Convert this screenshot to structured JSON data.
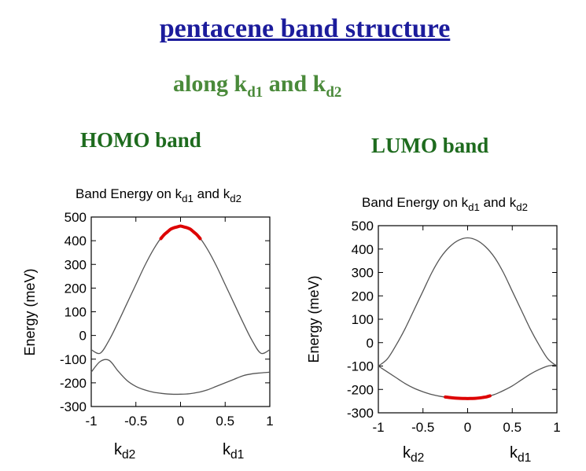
{
  "header": {
    "title": "pentacene band structure",
    "subtitle_prefix": "along k",
    "subtitle_sub1": "d1",
    "subtitle_mid": " and k",
    "subtitle_sub2": "d2"
  },
  "colors": {
    "title": "#1c1c9c",
    "subtitle": "#4a8a3a",
    "band_label": "#1e6b1e",
    "curve": "#555555",
    "highlight": "#dd0000"
  },
  "chart_data": [
    {
      "type": "line",
      "label": "HOMO band",
      "title_prefix": "Band Energy on k",
      "title_sub1": "d1",
      "title_mid": " and k",
      "title_sub2": "d2",
      "ylabel": "Energy (meV)",
      "x_left_label": "k",
      "x_left_sub": "d2",
      "x_right_label": "k",
      "x_right_sub": "d1",
      "xlim": [
        -1,
        1
      ],
      "ylim": [
        -300,
        500
      ],
      "xticks": [
        -1,
        -0.5,
        0,
        0.5,
        1
      ],
      "xtick_labels": [
        "-1",
        "-0.5",
        "0",
        "0.5",
        "1"
      ],
      "yticks": [
        -300,
        -200,
        -100,
        0,
        100,
        200,
        300,
        400,
        500
      ],
      "ytick_labels": [
        "-300",
        "-200",
        "-100",
        "0",
        "100",
        "200",
        "300",
        "400",
        "500"
      ],
      "series": [
        {
          "x": [
            -1,
            -0.9,
            -0.8,
            -0.7,
            -0.6,
            -0.5,
            -0.4,
            -0.3,
            -0.2,
            -0.1,
            0,
            0.1,
            0.2,
            0.3,
            0.4,
            0.5,
            0.6,
            0.7,
            0.8,
            0.9,
            1
          ],
          "values": [
            -60,
            -75,
            -20,
            55,
            135,
            215,
            295,
            365,
            420,
            452,
            462,
            452,
            420,
            365,
            295,
            215,
            135,
            55,
            -20,
            -75,
            -60
          ]
        },
        {
          "x": [
            -1,
            -0.9,
            -0.8,
            -0.7,
            -0.6,
            -0.5,
            -0.4,
            -0.3,
            -0.2,
            -0.1,
            0,
            0.1,
            0.2,
            0.3,
            0.4,
            0.5,
            0.6,
            0.7,
            0.8,
            0.9,
            1
          ],
          "values": [
            -155,
            -110,
            -105,
            -150,
            -190,
            -215,
            -230,
            -240,
            -245,
            -248,
            -248,
            -246,
            -240,
            -230,
            -215,
            -200,
            -185,
            -170,
            -162,
            -158,
            -155
          ]
        }
      ],
      "highlight": {
        "series_index": 0,
        "x_range": [
          -0.22,
          0.22
        ]
      }
    },
    {
      "type": "line",
      "label": "LUMO band",
      "title_prefix": "Band Energy on k",
      "title_sub1": "d1",
      "title_mid": " and k",
      "title_sub2": "d2",
      "ylabel": "Energy (meV)",
      "x_left_label": "k",
      "x_left_sub": "d2",
      "x_right_label": "k",
      "x_right_sub": "d1",
      "xlim": [
        -1,
        1
      ],
      "ylim": [
        -300,
        500
      ],
      "xticks": [
        -1,
        -0.5,
        0,
        0.5,
        1
      ],
      "xtick_labels": [
        "-1",
        "-0.5",
        "0",
        "0.5",
        "1"
      ],
      "yticks": [
        -300,
        -200,
        -100,
        0,
        100,
        200,
        300,
        400,
        500
      ],
      "ytick_labels": [
        "-300",
        "-200",
        "-100",
        "0",
        "100",
        "200",
        "300",
        "400",
        "500"
      ],
      "series": [
        {
          "x": [
            -1,
            -0.9,
            -0.8,
            -0.7,
            -0.6,
            -0.5,
            -0.4,
            -0.3,
            -0.2,
            -0.1,
            0,
            0.1,
            0.2,
            0.3,
            0.4,
            0.5,
            0.6,
            0.7,
            0.8,
            0.9,
            1
          ],
          "values": [
            -100,
            -70,
            -10,
            60,
            140,
            220,
            300,
            365,
            410,
            438,
            448,
            438,
            410,
            365,
            300,
            220,
            140,
            60,
            -10,
            -70,
            -100
          ]
        },
        {
          "x": [
            -1,
            -0.9,
            -0.8,
            -0.7,
            -0.6,
            -0.5,
            -0.4,
            -0.3,
            -0.2,
            -0.1,
            0,
            0.1,
            0.2,
            0.3,
            0.4,
            0.5,
            0.6,
            0.7,
            0.8,
            0.9,
            1
          ],
          "values": [
            -100,
            -125,
            -150,
            -175,
            -195,
            -210,
            -222,
            -230,
            -235,
            -238,
            -239,
            -238,
            -233,
            -222,
            -205,
            -185,
            -160,
            -135,
            -115,
            -100,
            -95
          ]
        }
      ],
      "highlight": {
        "series_index": 1,
        "x_range": [
          -0.25,
          0.25
        ]
      }
    }
  ]
}
